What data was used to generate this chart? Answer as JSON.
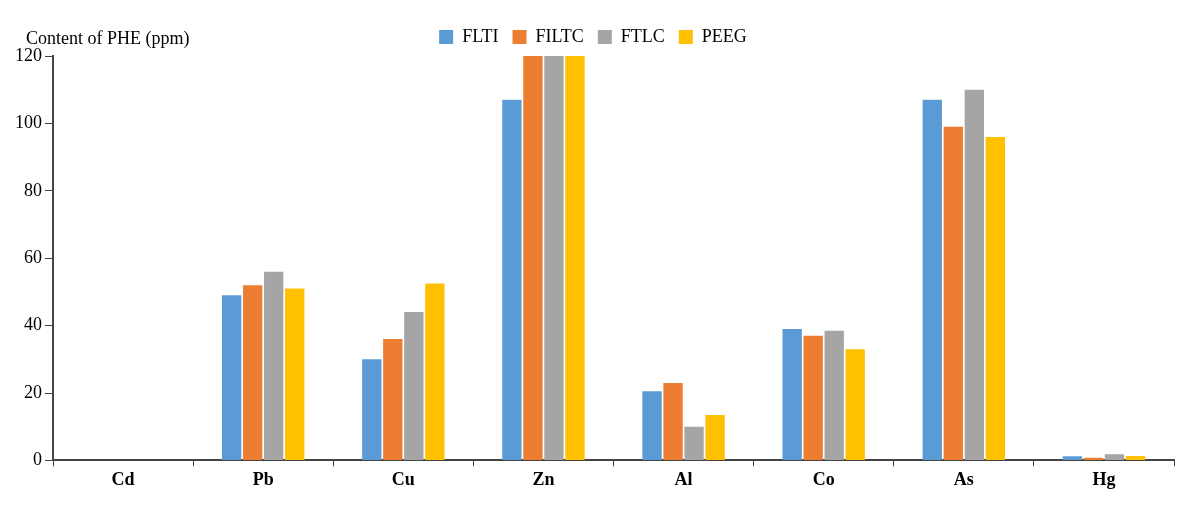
{
  "chart_data": {
    "type": "bar",
    "ylabel": "Content of PHE (ppm)",
    "categories": [
      "Cd",
      "Pb",
      "Cu",
      "Zn",
      "Al",
      "Co",
      "As",
      "Hg"
    ],
    "series": [
      {
        "name": "FLTI",
        "color": "#5b9bd5",
        "values": [
          0,
          49,
          30,
          107,
          20.5,
          39,
          107,
          1.2
        ]
      },
      {
        "name": "FILTC",
        "color": "#ed7d31",
        "values": [
          0,
          52,
          36,
          120,
          23,
          37,
          99,
          0.8
        ]
      },
      {
        "name": "FTLC",
        "color": "#a5a5a5",
        "values": [
          0,
          56,
          44,
          120,
          10,
          38.5,
          110,
          1.8
        ]
      },
      {
        "name": "PEEG",
        "color": "#ffc000",
        "values": [
          0,
          51,
          52.5,
          120,
          13.5,
          33,
          96,
          1.3
        ]
      }
    ],
    "ylim": [
      0,
      120
    ],
    "yticks": [
      0,
      20,
      40,
      60,
      80,
      100,
      120
    ],
    "grid": false,
    "legend": "top"
  }
}
